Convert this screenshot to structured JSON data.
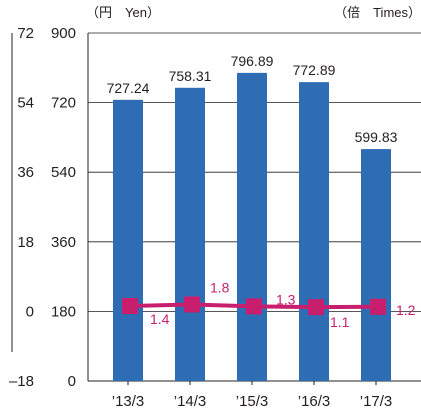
{
  "chart_data": {
    "type": "bar+line",
    "categories": [
      "’13/3",
      "’14/3",
      "’15/3",
      "’16/3",
      "’17/3"
    ],
    "series": [
      {
        "name": "",
        "type": "bar",
        "axis": "right-inner",
        "values": [
          727.24,
          758.31,
          796.89,
          772.89,
          599.83
        ],
        "labels": [
          "727.24",
          "758.31",
          "796.89",
          "772.89",
          "599.83"
        ],
        "color": "#2e6db4"
      },
      {
        "name": "",
        "type": "line",
        "axis": "left-outer",
        "values": [
          1.4,
          1.8,
          1.3,
          1.1,
          1.2
        ],
        "labels": [
          "1.4",
          "1.8",
          "1.3",
          "1.1",
          "1.2"
        ],
        "color": "#c81e6e"
      }
    ],
    "bar_axis": {
      "unit": "（円　Yen）",
      "ylim": [
        0,
        900
      ],
      "ticks": [
        0,
        180,
        360,
        540,
        720,
        900
      ],
      "tick_labels": [
        "0",
        "180",
        "360",
        "540",
        "720",
        "900"
      ]
    },
    "line_axis": {
      "unit": "（倍　Times）",
      "ylim": [
        -18,
        72
      ],
      "ticks": [
        -18,
        0,
        18,
        36,
        54,
        72
      ],
      "tick_labels": [
        "–18",
        "0",
        "18",
        "36",
        "54",
        "72"
      ]
    },
    "grid": true,
    "legend": "none"
  }
}
